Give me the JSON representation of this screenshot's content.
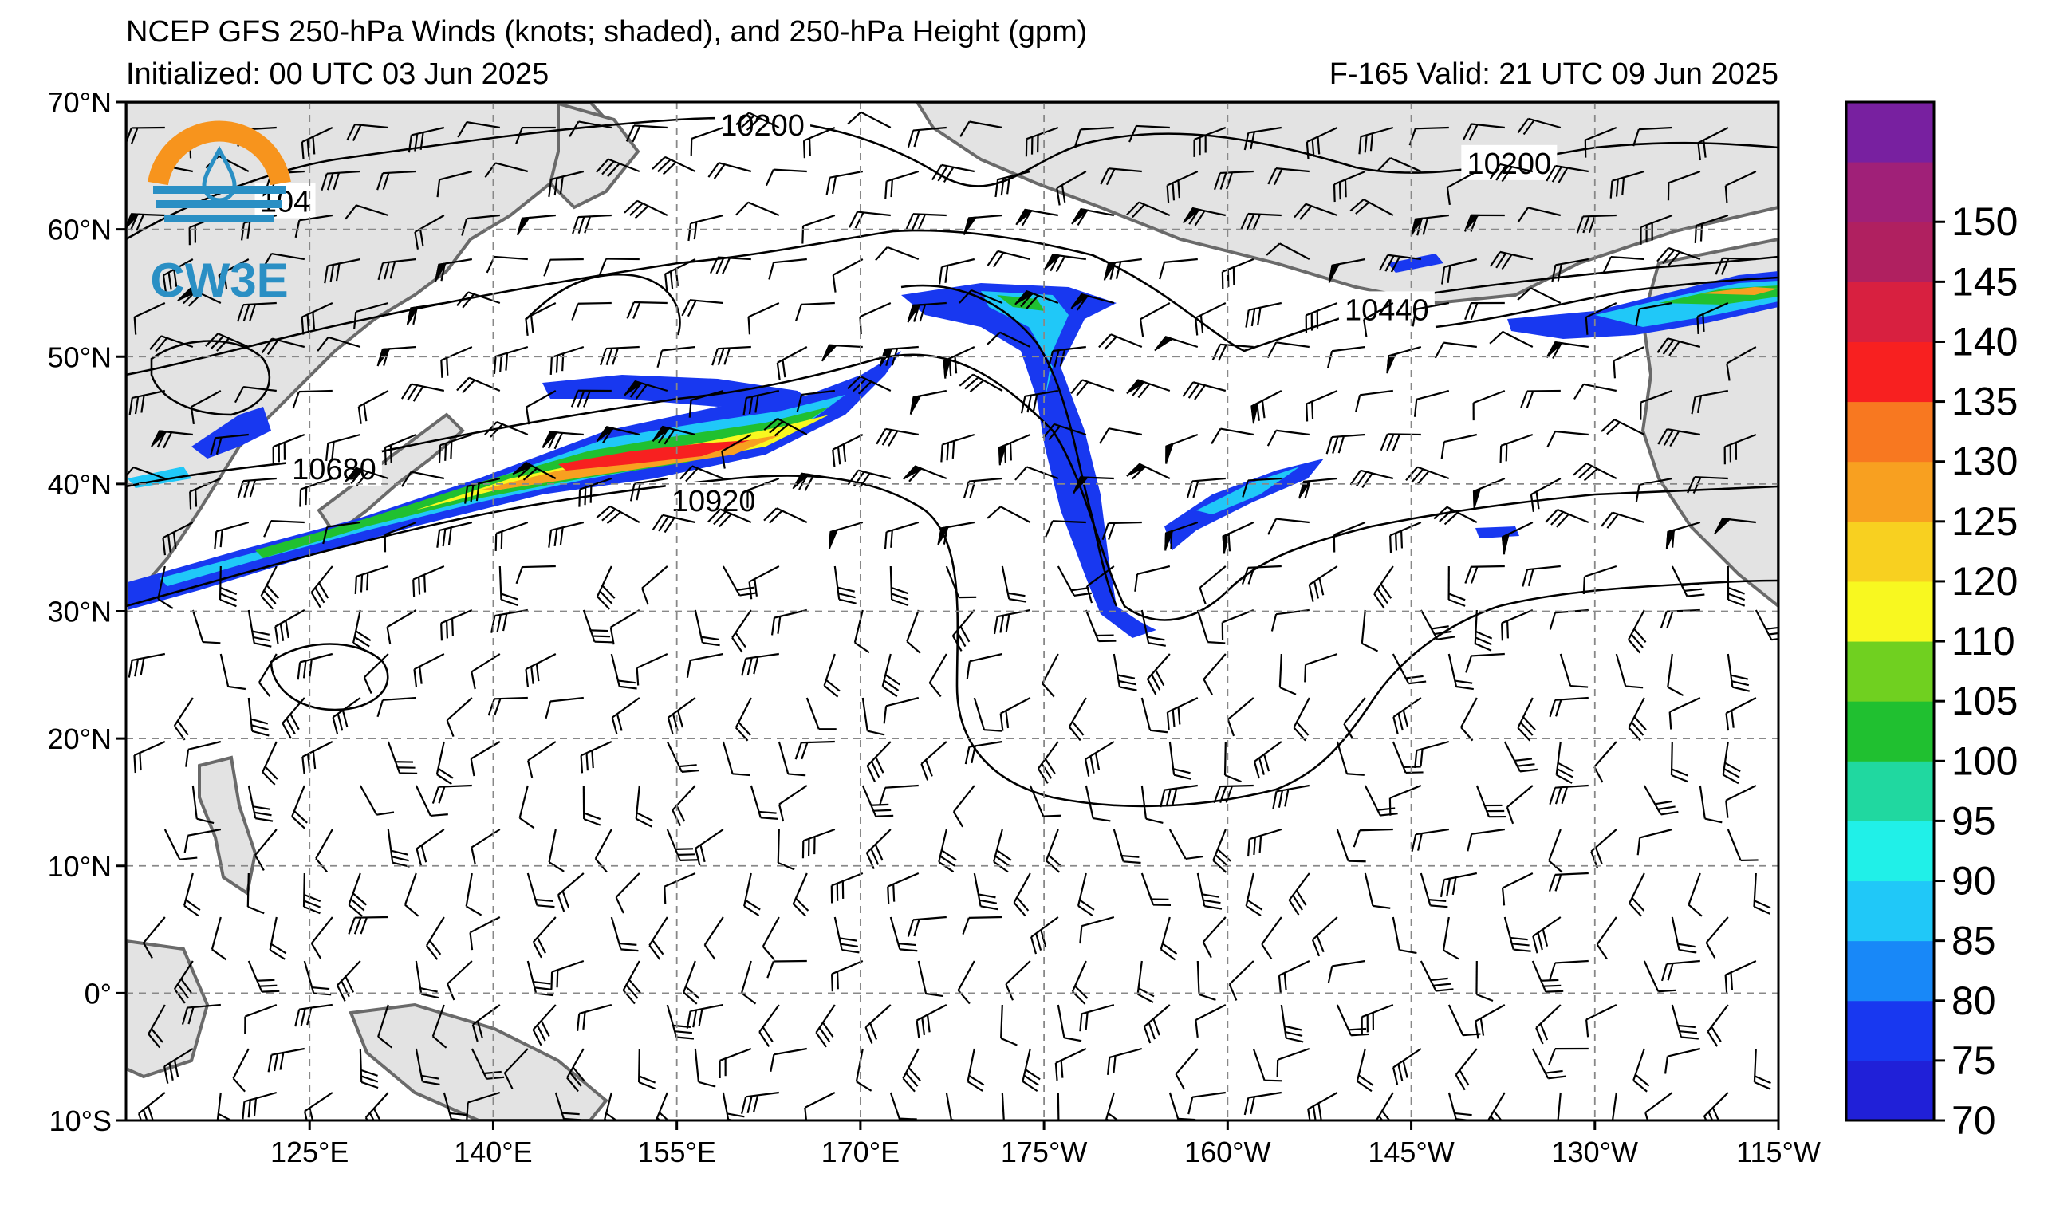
{
  "title": {
    "line1": "NCEP GFS 250-hPa Winds (knots; shaded), and 250-hPa Height (gpm)",
    "init": "Initialized: 00 UTC 03 Jun 2025",
    "valid": "F-165  Valid: 21 UTC 09 Jun 2025"
  },
  "logo": {
    "text": "CW3E",
    "colors": {
      "sun": "#f7941d",
      "blue": "#2a8fc4"
    }
  },
  "map": {
    "lat_labels": [
      "70°N",
      "60°N",
      "50°N",
      "40°N",
      "30°N",
      "20°N",
      "10°N",
      "0°",
      "10°S"
    ],
    "lon_labels": [
      "125°E",
      "140°E",
      "155°E",
      "170°E",
      "175°W",
      "160°W",
      "145°W",
      "130°W",
      "115°W"
    ],
    "land_color": "#e3e3e3",
    "grid": "dashed",
    "contour_labels": [
      {
        "text": "10200",
        "lon": 162,
        "lat": 68
      },
      {
        "text": "10200",
        "lon": -137,
        "lat": 65
      },
      {
        "text": "10440",
        "lon": -147,
        "lat": 53.5
      },
      {
        "text": "10680",
        "lon": 127,
        "lat": 41
      },
      {
        "text": "10920",
        "lon": 158,
        "lat": 38.5
      },
      {
        "text": "104",
        "lon": 123,
        "lat": 62
      }
    ]
  },
  "colorbar": {
    "levels": [
      "70",
      "75",
      "80",
      "85",
      "90",
      "95",
      "100",
      "105",
      "110",
      "120",
      "125",
      "130",
      "135",
      "140",
      "145",
      "150"
    ],
    "colors": [
      "#2020d8",
      "#1838f0",
      "#1888f8",
      "#20c8f8",
      "#20f0e8",
      "#20d8a0",
      "#20c030",
      "#70d020",
      "#f8f820",
      "#f8d020",
      "#f8a020",
      "#f87820",
      "#f82020",
      "#d82040",
      "#b02060",
      "#a02078",
      "#7820a0"
    ]
  }
}
